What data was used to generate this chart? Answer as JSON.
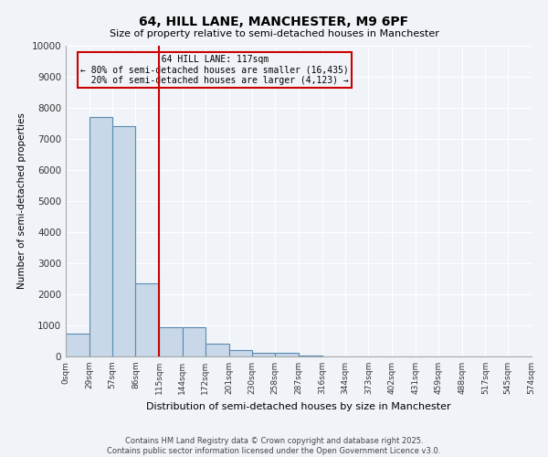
{
  "title": "64, HILL LANE, MANCHESTER, M9 6PF",
  "subtitle": "Size of property relative to semi-detached houses in Manchester",
  "xlabel": "Distribution of semi-detached houses by size in Manchester",
  "ylabel": "Number of semi-detached properties",
  "property_label": "64 HILL LANE: 117sqm",
  "pct_smaller": 80,
  "pct_larger": 20,
  "n_smaller": 16435,
  "n_larger": 4123,
  "bin_edges": [
    0,
    29,
    57,
    86,
    115,
    144,
    172,
    201,
    230,
    258,
    287,
    316,
    344,
    373,
    402,
    431,
    459,
    488,
    517,
    545,
    574
  ],
  "bin_labels": [
    "0sqm",
    "29sqm",
    "57sqm",
    "86sqm",
    "115sqm",
    "144sqm",
    "172sqm",
    "201sqm",
    "230sqm",
    "258sqm",
    "287sqm",
    "316sqm",
    "344sqm",
    "373sqm",
    "402sqm",
    "431sqm",
    "459sqm",
    "488sqm",
    "517sqm",
    "545sqm",
    "574sqm"
  ],
  "bar_heights": [
    750,
    7700,
    7400,
    2350,
    950,
    950,
    400,
    220,
    130,
    120,
    40,
    10,
    5,
    3,
    2,
    1,
    1,
    0,
    0,
    0
  ],
  "bar_color": "#c8d8e8",
  "bar_edge_color": "#5a8ab0",
  "vline_color": "#cc0000",
  "vline_x": 115,
  "ylim": [
    0,
    10000
  ],
  "yticks": [
    0,
    1000,
    2000,
    3000,
    4000,
    5000,
    6000,
    7000,
    8000,
    9000,
    10000
  ],
  "bg_color": "#f0f4f8",
  "grid_color": "#ffffff",
  "annotation_box_color": "#cc0000",
  "footer": "Contains HM Land Registry data © Crown copyright and database right 2025.\nContains public sector information licensed under the Open Government Licence v3.0."
}
